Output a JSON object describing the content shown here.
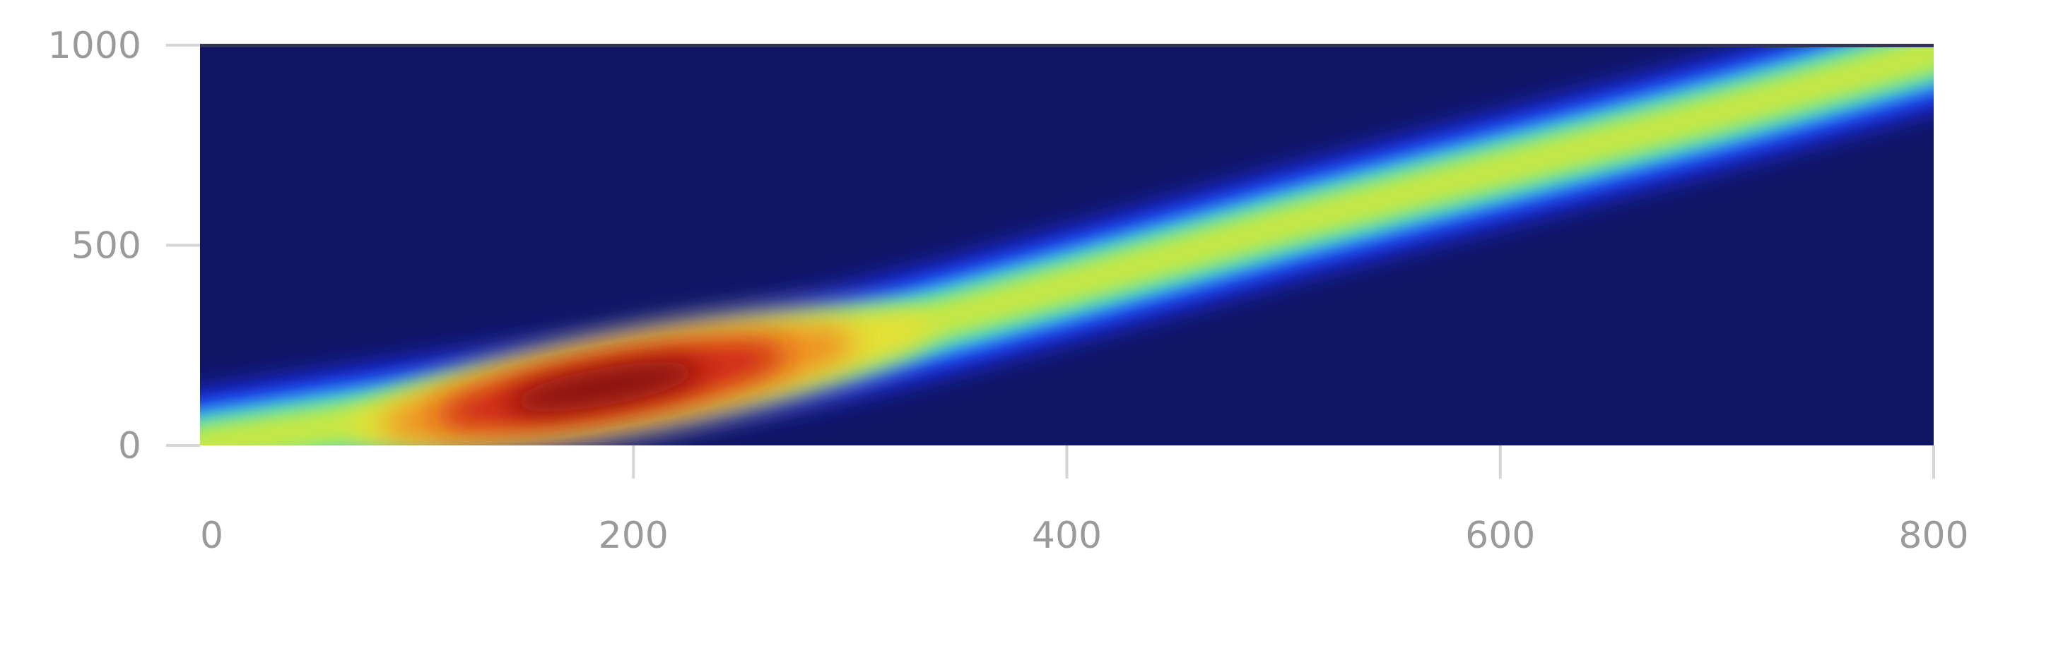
{
  "chart_data": {
    "type": "heatmap",
    "title": "",
    "xlabel": "",
    "ylabel": "",
    "xlim": [
      0,
      800
    ],
    "ylim": [
      0,
      1000
    ],
    "x_ticks": [
      0,
      200,
      400,
      600,
      800
    ],
    "y_ticks": [
      0,
      500,
      1000
    ],
    "x_tick_labels": [
      "0",
      "200",
      "400",
      "600",
      "800"
    ],
    "y_tick_labels": [
      "0",
      "500",
      "1000"
    ],
    "colormap": "jet",
    "grid": false,
    "legend": "none",
    "density_ridge": [
      {
        "x": 0,
        "y": 0
      },
      {
        "x": 100,
        "y": 80
      },
      {
        "x": 200,
        "y": 160
      },
      {
        "x": 300,
        "y": 260
      },
      {
        "x": 400,
        "y": 400
      },
      {
        "x": 500,
        "y": 550
      },
      {
        "x": 600,
        "y": 690
      },
      {
        "x": 700,
        "y": 830
      },
      {
        "x": 800,
        "y": 980
      }
    ],
    "peak": {
      "x": 190,
      "y": 150
    }
  },
  "colors": {
    "background_low": "#111566",
    "blue": "#1a33ff",
    "cyan": "#33d9ee",
    "green_yellow": "#b7ee4a",
    "yellow": "#e8e036",
    "orange": "#f08a20",
    "red": "#cc2418",
    "dark_red": "#7a0f0f",
    "tick_text": "#9a9a9a",
    "tick_mark": "#d6d6d6"
  }
}
